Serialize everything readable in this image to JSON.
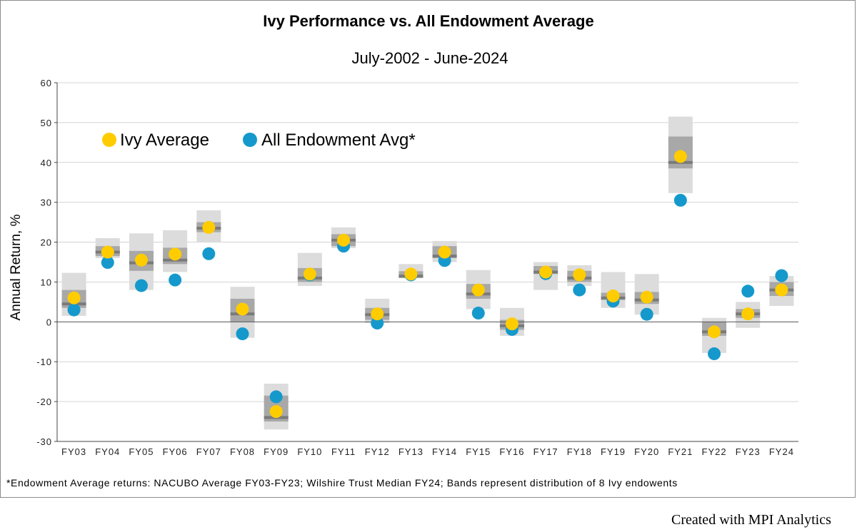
{
  "chart_data": {
    "type": "scatter",
    "title": "Ivy Performance vs. All Endowment Average",
    "subtitle": "July-2002 - June-2024",
    "ylabel": "Annual Return, %",
    "xlabel": "",
    "ylim": [
      -30,
      60
    ],
    "yticks": [
      -30,
      -20,
      -10,
      0,
      10,
      20,
      30,
      40,
      50,
      60
    ],
    "grid": true,
    "legend_position": "top-left",
    "categories": [
      "FY03",
      "FY04",
      "FY05",
      "FY06",
      "FY07",
      "FY08",
      "FY09",
      "FY10",
      "FY11",
      "FY12",
      "FY13",
      "FY14",
      "FY15",
      "FY16",
      "FY17",
      "FY18",
      "FY19",
      "FY20",
      "FY21",
      "FY22",
      "FY23",
      "FY24"
    ],
    "series": [
      {
        "name": "Ivy Average",
        "color": "#FFCC00",
        "values": [
          6.0,
          17.5,
          15.5,
          17.0,
          23.7,
          3.2,
          -22.5,
          12.0,
          20.5,
          2.0,
          12.0,
          17.5,
          8.0,
          -0.5,
          12.5,
          11.8,
          6.5,
          6.2,
          41.5,
          -2.5,
          2.0,
          8.0
        ]
      },
      {
        "name": "All Endowment Avg*",
        "color": "#1599CC",
        "values": [
          3.0,
          14.9,
          9.1,
          10.5,
          17.1,
          -3.0,
          -18.8,
          11.8,
          19.0,
          -0.3,
          11.8,
          15.4,
          2.2,
          -1.9,
          12.1,
          8.0,
          5.2,
          1.9,
          30.5,
          -8.0,
          7.7,
          11.6
        ]
      }
    ],
    "bands": {
      "description": "Distribution of 8 Ivy endowments (outer range, inner range, median)",
      "colors": {
        "outer": "#DCDCDC",
        "inner": "#A8A8A8",
        "median": "#7A7A7A"
      },
      "outer": [
        [
          1.5,
          12.3
        ],
        [
          16.0,
          21.0
        ],
        [
          8.0,
          22.2
        ],
        [
          12.5,
          23.0
        ],
        [
          20.0,
          28.0
        ],
        [
          -4.0,
          8.8
        ],
        [
          -27.0,
          -15.5
        ],
        [
          9.0,
          17.3
        ],
        [
          18.5,
          23.7
        ],
        [
          -0.3,
          5.8
        ],
        [
          11.0,
          14.5
        ],
        [
          15.0,
          20.3
        ],
        [
          3.2,
          13.0
        ],
        [
          -3.5,
          3.5
        ],
        [
          8.0,
          15.0
        ],
        [
          9.0,
          14.2
        ],
        [
          3.5,
          12.5
        ],
        [
          1.8,
          12.0
        ],
        [
          32.3,
          51.5
        ],
        [
          -7.8,
          1.0
        ],
        [
          -1.5,
          5.0
        ],
        [
          4.0,
          11.5
        ]
      ],
      "inner": [
        [
          3.5,
          8.0
        ],
        [
          16.5,
          19.0
        ],
        [
          12.8,
          17.8
        ],
        [
          14.5,
          18.6
        ],
        [
          22.5,
          25.0
        ],
        [
          0.0,
          5.8
        ],
        [
          -25.0,
          -18.5
        ],
        [
          10.0,
          13.5
        ],
        [
          19.0,
          22.0
        ],
        [
          0.5,
          3.5
        ],
        [
          11.0,
          12.7
        ],
        [
          16.0,
          19.0
        ],
        [
          5.8,
          9.5
        ],
        [
          -2.0,
          0.5
        ],
        [
          12.0,
          14.0
        ],
        [
          10.0,
          12.8
        ],
        [
          5.5,
          7.3
        ],
        [
          4.5,
          7.5
        ],
        [
          38.5,
          46.5
        ],
        [
          -3.5,
          0.0
        ],
        [
          1.0,
          3.2
        ],
        [
          6.5,
          10.0
        ]
      ],
      "median": [
        4.5,
        17.5,
        14.8,
        15.5,
        23.5,
        2.0,
        -24.0,
        11.0,
        20.5,
        1.8,
        11.5,
        16.5,
        7.0,
        -1.0,
        12.5,
        11.0,
        6.0,
        5.5,
        40.0,
        -2.5,
        2.0,
        8.0
      ]
    },
    "footnote": "*Endowment Average returns: NACUBO Average FY03-FY23; Wilshire Trust Median FY24;  Bands represent distribution of 8 Ivy endowents"
  },
  "credit": "Created with MPI Analytics"
}
